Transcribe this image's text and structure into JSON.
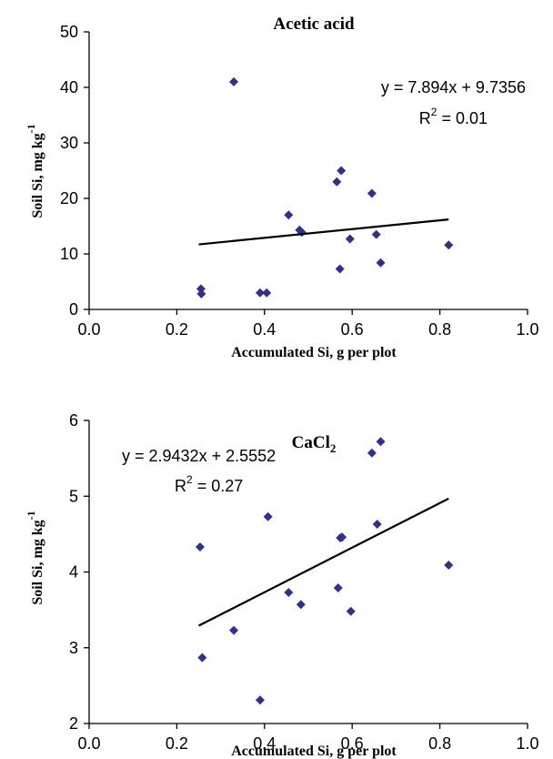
{
  "chart_data": [
    {
      "type": "scatter",
      "title": "Acetic acid",
      "xlabel": "Accumulated Si, g per plot",
      "ylabel_main": "Soil Si,  mg kg",
      "ylabel_sup": "-1",
      "xlim": [
        0.0,
        1.0
      ],
      "ylim": [
        0,
        50
      ],
      "xticks": [
        "0.0",
        "0.2",
        "0.4",
        "0.6",
        "0.8",
        "1.0"
      ],
      "yticks": [
        "0",
        "10",
        "20",
        "30",
        "40",
        "50"
      ],
      "marker_color": "#2e3192",
      "grid": false,
      "points": [
        {
          "x": 0.255,
          "y": 3.7
        },
        {
          "x": 0.256,
          "y": 2.8
        },
        {
          "x": 0.33,
          "y": 41.0
        },
        {
          "x": 0.39,
          "y": 3.0
        },
        {
          "x": 0.405,
          "y": 3.0
        },
        {
          "x": 0.455,
          "y": 17.0
        },
        {
          "x": 0.48,
          "y": 14.3
        },
        {
          "x": 0.485,
          "y": 13.9
        },
        {
          "x": 0.565,
          "y": 23.0
        },
        {
          "x": 0.572,
          "y": 7.3
        },
        {
          "x": 0.575,
          "y": 25.0
        },
        {
          "x": 0.595,
          "y": 12.7
        },
        {
          "x": 0.645,
          "y": 20.9
        },
        {
          "x": 0.655,
          "y": 13.5
        },
        {
          "x": 0.665,
          "y": 8.4
        },
        {
          "x": 0.82,
          "y": 11.6
        }
      ],
      "trendline": {
        "x0": 0.25,
        "x1": 0.82,
        "slope": 7.894,
        "intercept": 9.7356
      },
      "equation": "y = 7.894x + 9.7356",
      "r2_prefix": "R",
      "r2_sup": "2",
      "r2_value": " = 0.01"
    },
    {
      "type": "scatter",
      "title": "CaCl",
      "title_sub": "2",
      "xlabel": "Accumulated Si, g per plot",
      "ylabel_main": "Soil Si,  mg kg",
      "ylabel_sup": "-1",
      "xlim": [
        0.0,
        1.0
      ],
      "ylim": [
        2,
        6
      ],
      "xticks": [
        "0.0",
        "0.2",
        "0.4",
        "0.6",
        "0.8",
        "1.0"
      ],
      "yticks": [
        "2",
        "3",
        "4",
        "5",
        "6"
      ],
      "marker_color": "#2e3192",
      "grid": false,
      "points": [
        {
          "x": 0.253,
          "y": 4.33
        },
        {
          "x": 0.258,
          "y": 2.87
        },
        {
          "x": 0.33,
          "y": 3.23
        },
        {
          "x": 0.39,
          "y": 2.31
        },
        {
          "x": 0.408,
          "y": 4.73
        },
        {
          "x": 0.455,
          "y": 3.73
        },
        {
          "x": 0.483,
          "y": 3.57
        },
        {
          "x": 0.568,
          "y": 3.79
        },
        {
          "x": 0.573,
          "y": 4.45
        },
        {
          "x": 0.577,
          "y": 4.46
        },
        {
          "x": 0.597,
          "y": 3.48
        },
        {
          "x": 0.645,
          "y": 5.57
        },
        {
          "x": 0.657,
          "y": 4.63
        },
        {
          "x": 0.665,
          "y": 5.72
        },
        {
          "x": 0.82,
          "y": 4.09
        }
      ],
      "trendline": {
        "x0": 0.25,
        "x1": 0.82,
        "slope": 2.9432,
        "intercept": 2.5552
      },
      "equation": "y = 2.9432x + 2.5552",
      "r2_prefix": "R",
      "r2_sup": "2",
      "r2_value": " = 0.27"
    }
  ]
}
